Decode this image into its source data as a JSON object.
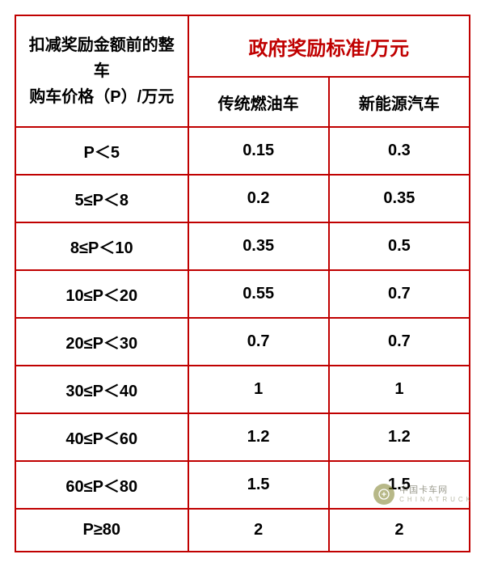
{
  "title_color": "#c00000",
  "border_color": "#c00000",
  "text_color": "#000000",
  "background_color": "#ffffff",
  "headers": {
    "price_header_line1": "扣减奖励金额前的整车",
    "price_header_line2": "购车价格（P）/万元",
    "reward_header": "政府奖励标准/万元",
    "fuel_header": "传统燃油车",
    "nev_header": "新能源汽车"
  },
  "rows": [
    {
      "price": "P＜5",
      "fuel": "0.15",
      "nev": "0.3"
    },
    {
      "price": "5≤P＜8",
      "fuel": "0.2",
      "nev": "0.35"
    },
    {
      "price": "8≤P＜10",
      "fuel": "0.35",
      "nev": "0.5"
    },
    {
      "price": "10≤P＜20",
      "fuel": "0.55",
      "nev": "0.7"
    },
    {
      "price": "20≤P＜30",
      "fuel": "0.7",
      "nev": "0.7"
    },
    {
      "price": "30≤P＜40",
      "fuel": "1",
      "nev": "1"
    },
    {
      "price": "40≤P＜60",
      "fuel": "1.2",
      "nev": "1.2"
    },
    {
      "price": "60≤P＜80",
      "fuel": "1.5",
      "nev": "1.5"
    },
    {
      "price": "P≥80",
      "fuel": "2",
      "nev": "2"
    }
  ],
  "watermark": {
    "brand_cn": "中国卡车网",
    "brand_en": "CHINATRUCK"
  }
}
